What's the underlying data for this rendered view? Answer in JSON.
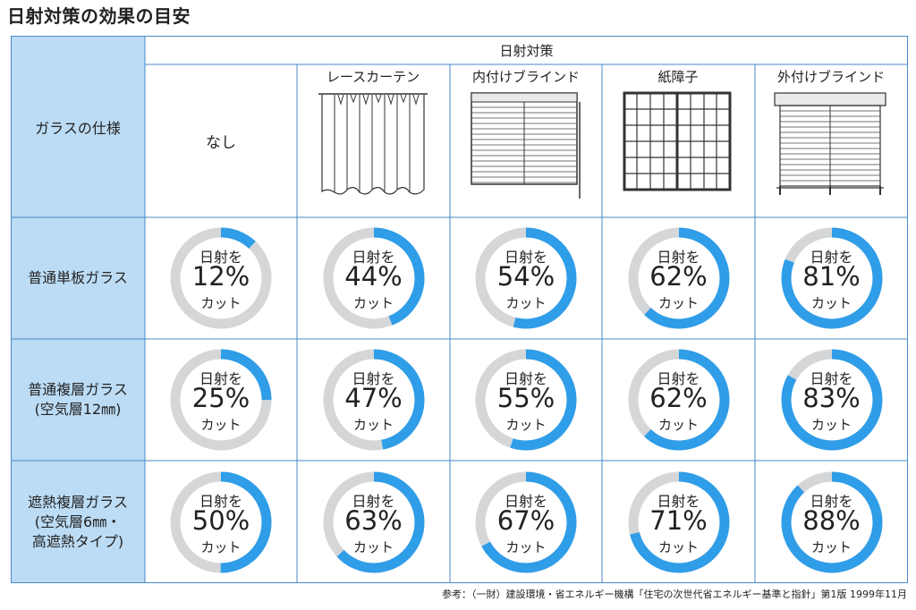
{
  "page": {
    "title": "日射対策の効果の目安",
    "footnote": "参考：（一財）建設環境・省エネルギー機構「住宅の次世代省エネルギー基準と指針」第1版 1999年11月"
  },
  "colors": {
    "accent": "#2f9de8",
    "track": "#d4d6d8",
    "label_bg": "#bcdcf5",
    "border": "#4a88c7"
  },
  "chart_data": {
    "type": "table",
    "title": "日射対策の効果の目安",
    "corner_label": "ガラスの仕様",
    "column_group_label": "日射対策",
    "columns": [
      {
        "name": "なし",
        "icon": "none"
      },
      {
        "name": "レースカーテン",
        "icon": "lace-curtain-icon"
      },
      {
        "name": "内付けブラインド",
        "icon": "interior-blind-icon"
      },
      {
        "name": "紙障子",
        "icon": "shoji-icon"
      },
      {
        "name": "外付けブラインド",
        "icon": "exterior-blind-icon"
      }
    ],
    "rows": [
      {
        "name": "普通単板ガラス",
        "values": [
          12,
          44,
          54,
          62,
          81
        ]
      },
      {
        "name": "普通複層ガラス\n(空気層12㎜)",
        "values": [
          25,
          47,
          55,
          62,
          83
        ]
      },
      {
        "name": "遮熱複層ガラス\n(空気層6㎜・\n高遮熱タイプ)",
        "values": [
          50,
          63,
          67,
          71,
          88
        ]
      }
    ],
    "cell_prefix": "日射を",
    "cell_suffix": "カット",
    "unit": "%"
  }
}
